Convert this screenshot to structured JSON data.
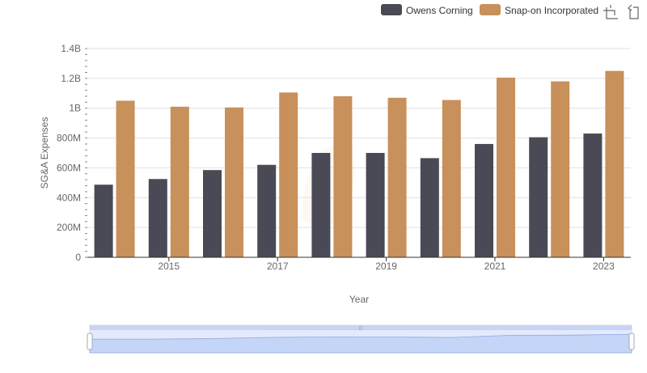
{
  "chart_data": {
    "type": "bar",
    "xlabel": "Year",
    "ylabel": "SG&A Expenses",
    "x": [
      2014,
      2015,
      2016,
      2017,
      2018,
      2019,
      2020,
      2021,
      2022,
      2023
    ],
    "x_ticks": [
      "2015",
      "2017",
      "2019",
      "2021",
      "2023"
    ],
    "x_tick_values": [
      2015,
      2017,
      2019,
      2021,
      2023
    ],
    "y_ticks": [
      "0",
      "200M",
      "400M",
      "600M",
      "800M",
      "1B",
      "1.2B",
      "1.4B"
    ],
    "y_tick_values": [
      0,
      200000000,
      400000000,
      600000000,
      800000000,
      1000000000,
      1200000000,
      1400000000
    ],
    "ylim": [
      0,
      1400000000
    ],
    "grid": true,
    "legend_position": "top-right",
    "series": [
      {
        "name": "Owens Corning",
        "color": "#4a4a56",
        "values": [
          487000000,
          525000000,
          585000000,
          620000000,
          700000000,
          700000000,
          665000000,
          760000000,
          805000000,
          830000000
        ]
      },
      {
        "name": "Snap-on Incorporated",
        "color": "#c8905a",
        "values": [
          1050000000,
          1010000000,
          1005000000,
          1105000000,
          1080000000,
          1070000000,
          1055000000,
          1205000000,
          1180000000,
          1250000000
        ]
      }
    ]
  },
  "toolbar": {
    "zoom_icon": "zoom-select-icon",
    "restore_icon": "restore-icon"
  }
}
